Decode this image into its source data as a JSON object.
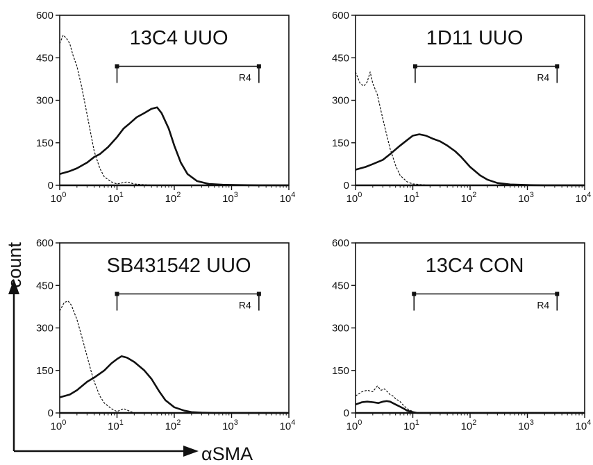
{
  "figure": {
    "y_axis_title": "count",
    "x_axis_title": "αSMA"
  },
  "chart_data": [
    {
      "type": "line",
      "title": "13C4 UUO",
      "xscale": "log",
      "xlim": [
        1,
        10000
      ],
      "ylim": [
        0,
        600
      ],
      "yticks": [
        "0",
        "150",
        "300",
        "450",
        "600"
      ],
      "xticks": [
        {
          "base": "10",
          "exp": "0"
        },
        {
          "base": "10",
          "exp": "1"
        },
        {
          "base": "10",
          "exp": "2"
        },
        {
          "base": "10",
          "exp": "3"
        },
        {
          "base": "10",
          "exp": "4"
        }
      ],
      "gate": {
        "label": "R4",
        "from": 10,
        "to": 3000,
        "y": 420
      },
      "series": [
        {
          "style": "solid",
          "x": [
            1,
            1.5,
            2,
            3,
            4,
            5,
            7,
            10,
            13,
            17,
            22,
            30,
            40,
            50,
            60,
            80,
            100,
            130,
            170,
            250,
            400,
            700,
            1200,
            3000,
            10000
          ],
          "y": [
            40,
            50,
            60,
            80,
            100,
            110,
            135,
            170,
            200,
            220,
            240,
            255,
            270,
            275,
            255,
            200,
            140,
            80,
            40,
            15,
            5,
            2,
            1,
            0,
            0
          ]
        },
        {
          "style": "dashed",
          "x": [
            1,
            1.15,
            1.3,
            1.5,
            1.7,
            2,
            2.4,
            3,
            3.5,
            4,
            5,
            6,
            8,
            10,
            15,
            20,
            30,
            50,
            10000
          ],
          "y": [
            500,
            530,
            520,
            500,
            460,
            420,
            350,
            250,
            180,
            120,
            60,
            30,
            12,
            5,
            12,
            5,
            2,
            0,
            0
          ]
        }
      ]
    },
    {
      "type": "line",
      "title": "1D11 UUO",
      "xscale": "log",
      "xlim": [
        1,
        10000
      ],
      "ylim": [
        0,
        600
      ],
      "yticks": [
        "0",
        "150",
        "300",
        "450",
        "600"
      ],
      "xticks": [
        {
          "base": "10",
          "exp": "0"
        },
        {
          "base": "10",
          "exp": "1"
        },
        {
          "base": "10",
          "exp": "2"
        },
        {
          "base": "10",
          "exp": "3"
        },
        {
          "base": "10",
          "exp": "4"
        }
      ],
      "gate": {
        "label": "R4",
        "from": 11,
        "to": 3300,
        "y": 420
      },
      "series": [
        {
          "style": "solid",
          "x": [
            1,
            1.5,
            2,
            3,
            4,
            6,
            8,
            10,
            13,
            17,
            22,
            30,
            40,
            55,
            70,
            100,
            150,
            200,
            300,
            500,
            1000,
            2000,
            10000
          ],
          "y": [
            55,
            65,
            75,
            90,
            110,
            140,
            160,
            175,
            180,
            175,
            165,
            155,
            140,
            120,
            100,
            65,
            35,
            20,
            8,
            3,
            1,
            0,
            0
          ]
        },
        {
          "style": "dashed",
          "x": [
            1,
            1.2,
            1.4,
            1.6,
            1.8,
            2,
            2.4,
            2.8,
            3.2,
            4,
            5,
            6,
            8,
            10,
            20,
            10000
          ],
          "y": [
            400,
            360,
            350,
            365,
            400,
            360,
            320,
            260,
            210,
            130,
            70,
            35,
            12,
            5,
            0,
            0
          ]
        }
      ]
    },
    {
      "type": "line",
      "title": "SB431542 UUO",
      "xscale": "log",
      "xlim": [
        1,
        10000
      ],
      "ylim": [
        0,
        600
      ],
      "yticks": [
        "0",
        "150",
        "300",
        "450",
        "600"
      ],
      "xticks": [
        {
          "base": "10",
          "exp": "0"
        },
        {
          "base": "10",
          "exp": "1"
        },
        {
          "base": "10",
          "exp": "2"
        },
        {
          "base": "10",
          "exp": "3"
        },
        {
          "base": "10",
          "exp": "4"
        }
      ],
      "gate": {
        "label": "R4",
        "from": 10,
        "to": 3000,
        "y": 420
      },
      "series": [
        {
          "style": "solid",
          "x": [
            1,
            1.5,
            2,
            3,
            4,
            6,
            8,
            10,
            12,
            15,
            20,
            30,
            40,
            55,
            70,
            100,
            150,
            200,
            300,
            500,
            1000,
            10000
          ],
          "y": [
            55,
            65,
            80,
            110,
            125,
            150,
            175,
            190,
            200,
            195,
            180,
            150,
            120,
            75,
            45,
            20,
            8,
            3,
            1,
            0,
            0,
            0
          ]
        },
        {
          "style": "dashed",
          "x": [
            1,
            1.2,
            1.4,
            1.6,
            2,
            2.5,
            3,
            3.5,
            4,
            5,
            6,
            8,
            10,
            13,
            20,
            10000
          ],
          "y": [
            360,
            390,
            395,
            380,
            330,
            260,
            200,
            150,
            110,
            60,
            35,
            15,
            5,
            15,
            0,
            0
          ]
        }
      ]
    },
    {
      "type": "line",
      "title": "13C4 CON",
      "xscale": "log",
      "xlim": [
        1,
        10000
      ],
      "ylim": [
        0,
        600
      ],
      "yticks": [
        "0",
        "150",
        "300",
        "450",
        "600"
      ],
      "xticks": [
        {
          "base": "10",
          "exp": "0"
        },
        {
          "base": "10",
          "exp": "1"
        },
        {
          "base": "10",
          "exp": "2"
        },
        {
          "base": "10",
          "exp": "3"
        },
        {
          "base": "10",
          "exp": "4"
        }
      ],
      "gate": {
        "label": "R4",
        "from": 10.5,
        "to": 3300,
        "y": 420
      },
      "series": [
        {
          "style": "solid",
          "x": [
            1,
            1.3,
            1.6,
            2,
            2.5,
            3,
            3.5,
            4,
            5,
            6,
            7,
            8,
            10,
            12,
            10000
          ],
          "y": [
            30,
            38,
            40,
            38,
            35,
            40,
            42,
            40,
            30,
            22,
            15,
            8,
            3,
            0,
            0
          ]
        },
        {
          "style": "dashed",
          "x": [
            1,
            1.3,
            1.6,
            2,
            2.4,
            2.8,
            3.2,
            3.6,
            4,
            4.5,
            5,
            6,
            7,
            8,
            10,
            12,
            10000
          ],
          "y": [
            60,
            75,
            80,
            75,
            95,
            80,
            85,
            75,
            65,
            60,
            50,
            40,
            25,
            15,
            5,
            0,
            0
          ]
        }
      ]
    }
  ]
}
